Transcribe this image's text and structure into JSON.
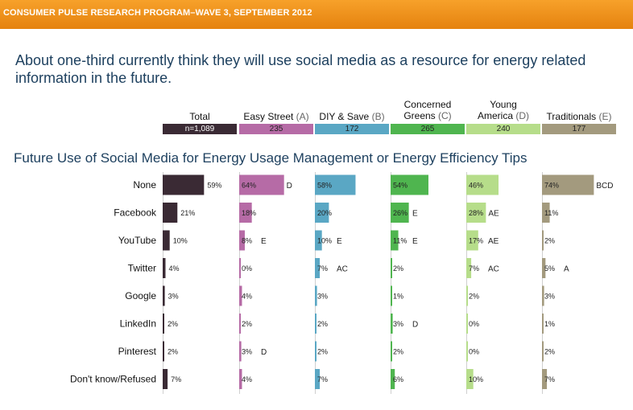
{
  "banner": {
    "text": "CONSUMER PULSE RESEARCH PROGRAM–WAVE 3, SEPTEMBER 2012"
  },
  "headline": "About one-third currently think they will use social media as a resource for energy related information in the future.",
  "segments": [
    {
      "label": "Total",
      "letter": "",
      "n": "n=1,089",
      "color": "#3a2a34"
    },
    {
      "label": "Easy Street",
      "letter": "(A)",
      "n": "235",
      "color": "#b66ba6"
    },
    {
      "label": "DIY & Save",
      "letter": "(B)",
      "n": "172",
      "color": "#5aa7c4"
    },
    {
      "label": "Concerned Greens",
      "letter": "(C)",
      "n": "265",
      "color": "#4fb54f"
    },
    {
      "label": "Young America",
      "letter": "(D)",
      "n": "240",
      "color": "#b6dd8a"
    },
    {
      "label": "Traditionals",
      "letter": "(E)",
      "n": "177",
      "color": "#a39a7e"
    }
  ],
  "chart_data": {
    "type": "bar",
    "title": "Future Use of Social Media for Energy Usage Management or Energy Efficiency Tips",
    "categories": [
      "None",
      "Facebook",
      "YouTube",
      "Twitter",
      "Google",
      "LinkedIn",
      "Pinterest",
      "Don't know/Refused"
    ],
    "series": [
      {
        "name": "Total",
        "values": [
          59,
          21,
          10,
          4,
          3,
          2,
          2,
          7
        ],
        "sig": [
          "",
          "",
          "",
          "",
          "",
          "",
          "",
          ""
        ]
      },
      {
        "name": "Easy Street",
        "values": [
          64,
          18,
          8,
          0,
          4,
          2,
          3,
          4
        ],
        "sig": [
          "D",
          "",
          "E",
          "",
          "",
          "",
          "D",
          ""
        ]
      },
      {
        "name": "DIY & Save",
        "values": [
          58,
          20,
          10,
          7,
          3,
          2,
          2,
          7
        ],
        "sig": [
          "",
          "",
          "E",
          "AC",
          "",
          "",
          "",
          ""
        ]
      },
      {
        "name": "Concerned Greens",
        "values": [
          54,
          26,
          11,
          2,
          1,
          3,
          2,
          6
        ],
        "sig": [
          "",
          "E",
          "E",
          "",
          "",
          "D",
          "",
          ""
        ]
      },
      {
        "name": "Young America",
        "values": [
          46,
          28,
          17,
          7,
          2,
          0,
          0,
          10
        ],
        "sig": [
          "",
          "AE",
          "AE",
          "AC",
          "",
          "",
          "",
          ""
        ]
      },
      {
        "name": "Traditionals",
        "values": [
          74,
          11,
          2,
          5,
          3,
          1,
          2,
          7
        ],
        "sig": [
          "BCD",
          "",
          "",
          "A",
          "",
          "",
          "",
          ""
        ]
      }
    ],
    "unit": "%",
    "xlim": [
      0,
      100
    ]
  }
}
